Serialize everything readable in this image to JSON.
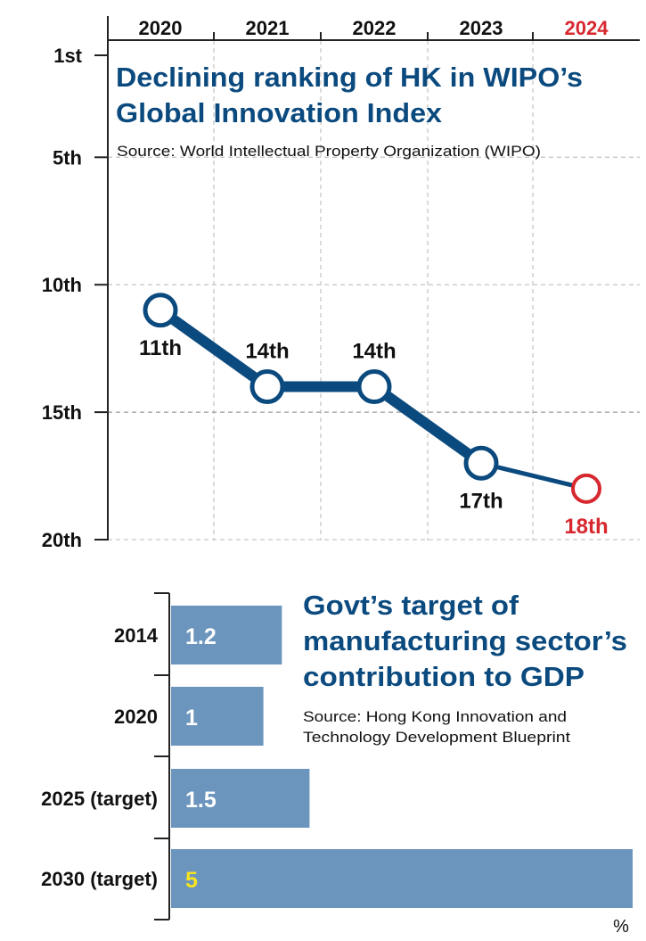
{
  "colors": {
    "navy": "#0b4a7e",
    "highlight_red": "#d7282f",
    "bar_blue": "#6b95bd",
    "bar_text": "#ffffff",
    "highlight_yellow": "#f7e31f",
    "grid": "#c8c8c8",
    "axis": "#222222",
    "text": "#111111"
  },
  "chart_data": [
    {
      "type": "line",
      "title": "Declining ranking of HK in WIPO’s Global Innovation Index",
      "title_lines": [
        "Declining ranking of HK in WIPO’s",
        "Global Innovation Index"
      ],
      "source": "Source: World Intellectual Property Organization (WIPO)",
      "categories": [
        "2020",
        "2021",
        "2022",
        "2023",
        "2024"
      ],
      "highlight_category": "2024",
      "values": [
        11,
        14,
        14,
        17,
        18
      ],
      "point_labels": [
        "11th",
        "14th",
        "14th",
        "17th",
        "18th"
      ],
      "y_ticks": [
        1,
        5,
        10,
        15,
        20
      ],
      "y_tick_labels": [
        "1st",
        "5th",
        "10th",
        "15th",
        "20th"
      ],
      "ylim": [
        1,
        20
      ],
      "y_inverted": true,
      "x_axis_position": "top",
      "grid": true
    },
    {
      "type": "bar",
      "orientation": "horizontal",
      "title": "Govt’s target of manufacturing sector’s contribution to GDP",
      "title_lines": [
        "Govt’s target of",
        "manufacturing sector’s",
        "contribution to GDP"
      ],
      "source": "Source: Hong Kong Innovation and Technology Development Blueprint",
      "source_lines": [
        "Source: Hong Kong Innovation and",
        "Technology Development Blueprint"
      ],
      "categories": [
        "2014",
        "2020",
        "2025 (target)",
        "2030 (target)"
      ],
      "values": [
        1.2,
        1,
        1.5,
        5
      ],
      "value_labels": [
        "1.2",
        "1",
        "1.5",
        "5"
      ],
      "highlight_index": 3,
      "unit": "%",
      "xlim": [
        0,
        5
      ]
    }
  ]
}
